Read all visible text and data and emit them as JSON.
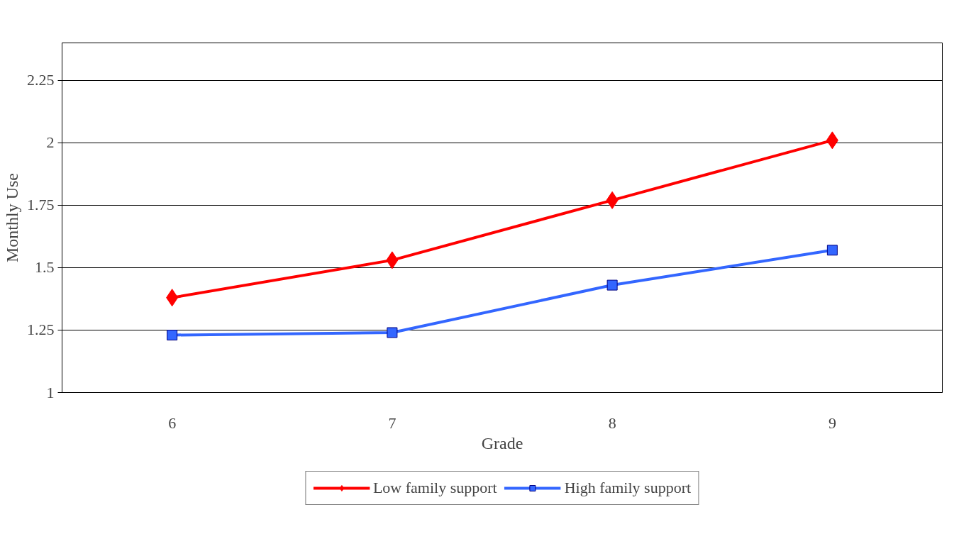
{
  "chart_data": {
    "type": "line",
    "xlabel": "Grade",
    "ylabel": "Monthly Use",
    "categories": [
      "6",
      "7",
      "8",
      "9"
    ],
    "series": [
      {
        "name": "Low family support",
        "color": "#ff0000",
        "marker": "diamond",
        "values": [
          1.38,
          1.53,
          1.77,
          2.01
        ]
      },
      {
        "name": "High family support",
        "color": "#3366ff",
        "marker": "square",
        "values": [
          1.23,
          1.24,
          1.43,
          1.57
        ]
      }
    ],
    "ylim": [
      1,
      2.4
    ],
    "yticks": [
      1,
      1.25,
      1.5,
      1.75,
      2,
      2.25
    ],
    "grid": "y",
    "legend": "bottom",
    "line_style": "solid"
  }
}
